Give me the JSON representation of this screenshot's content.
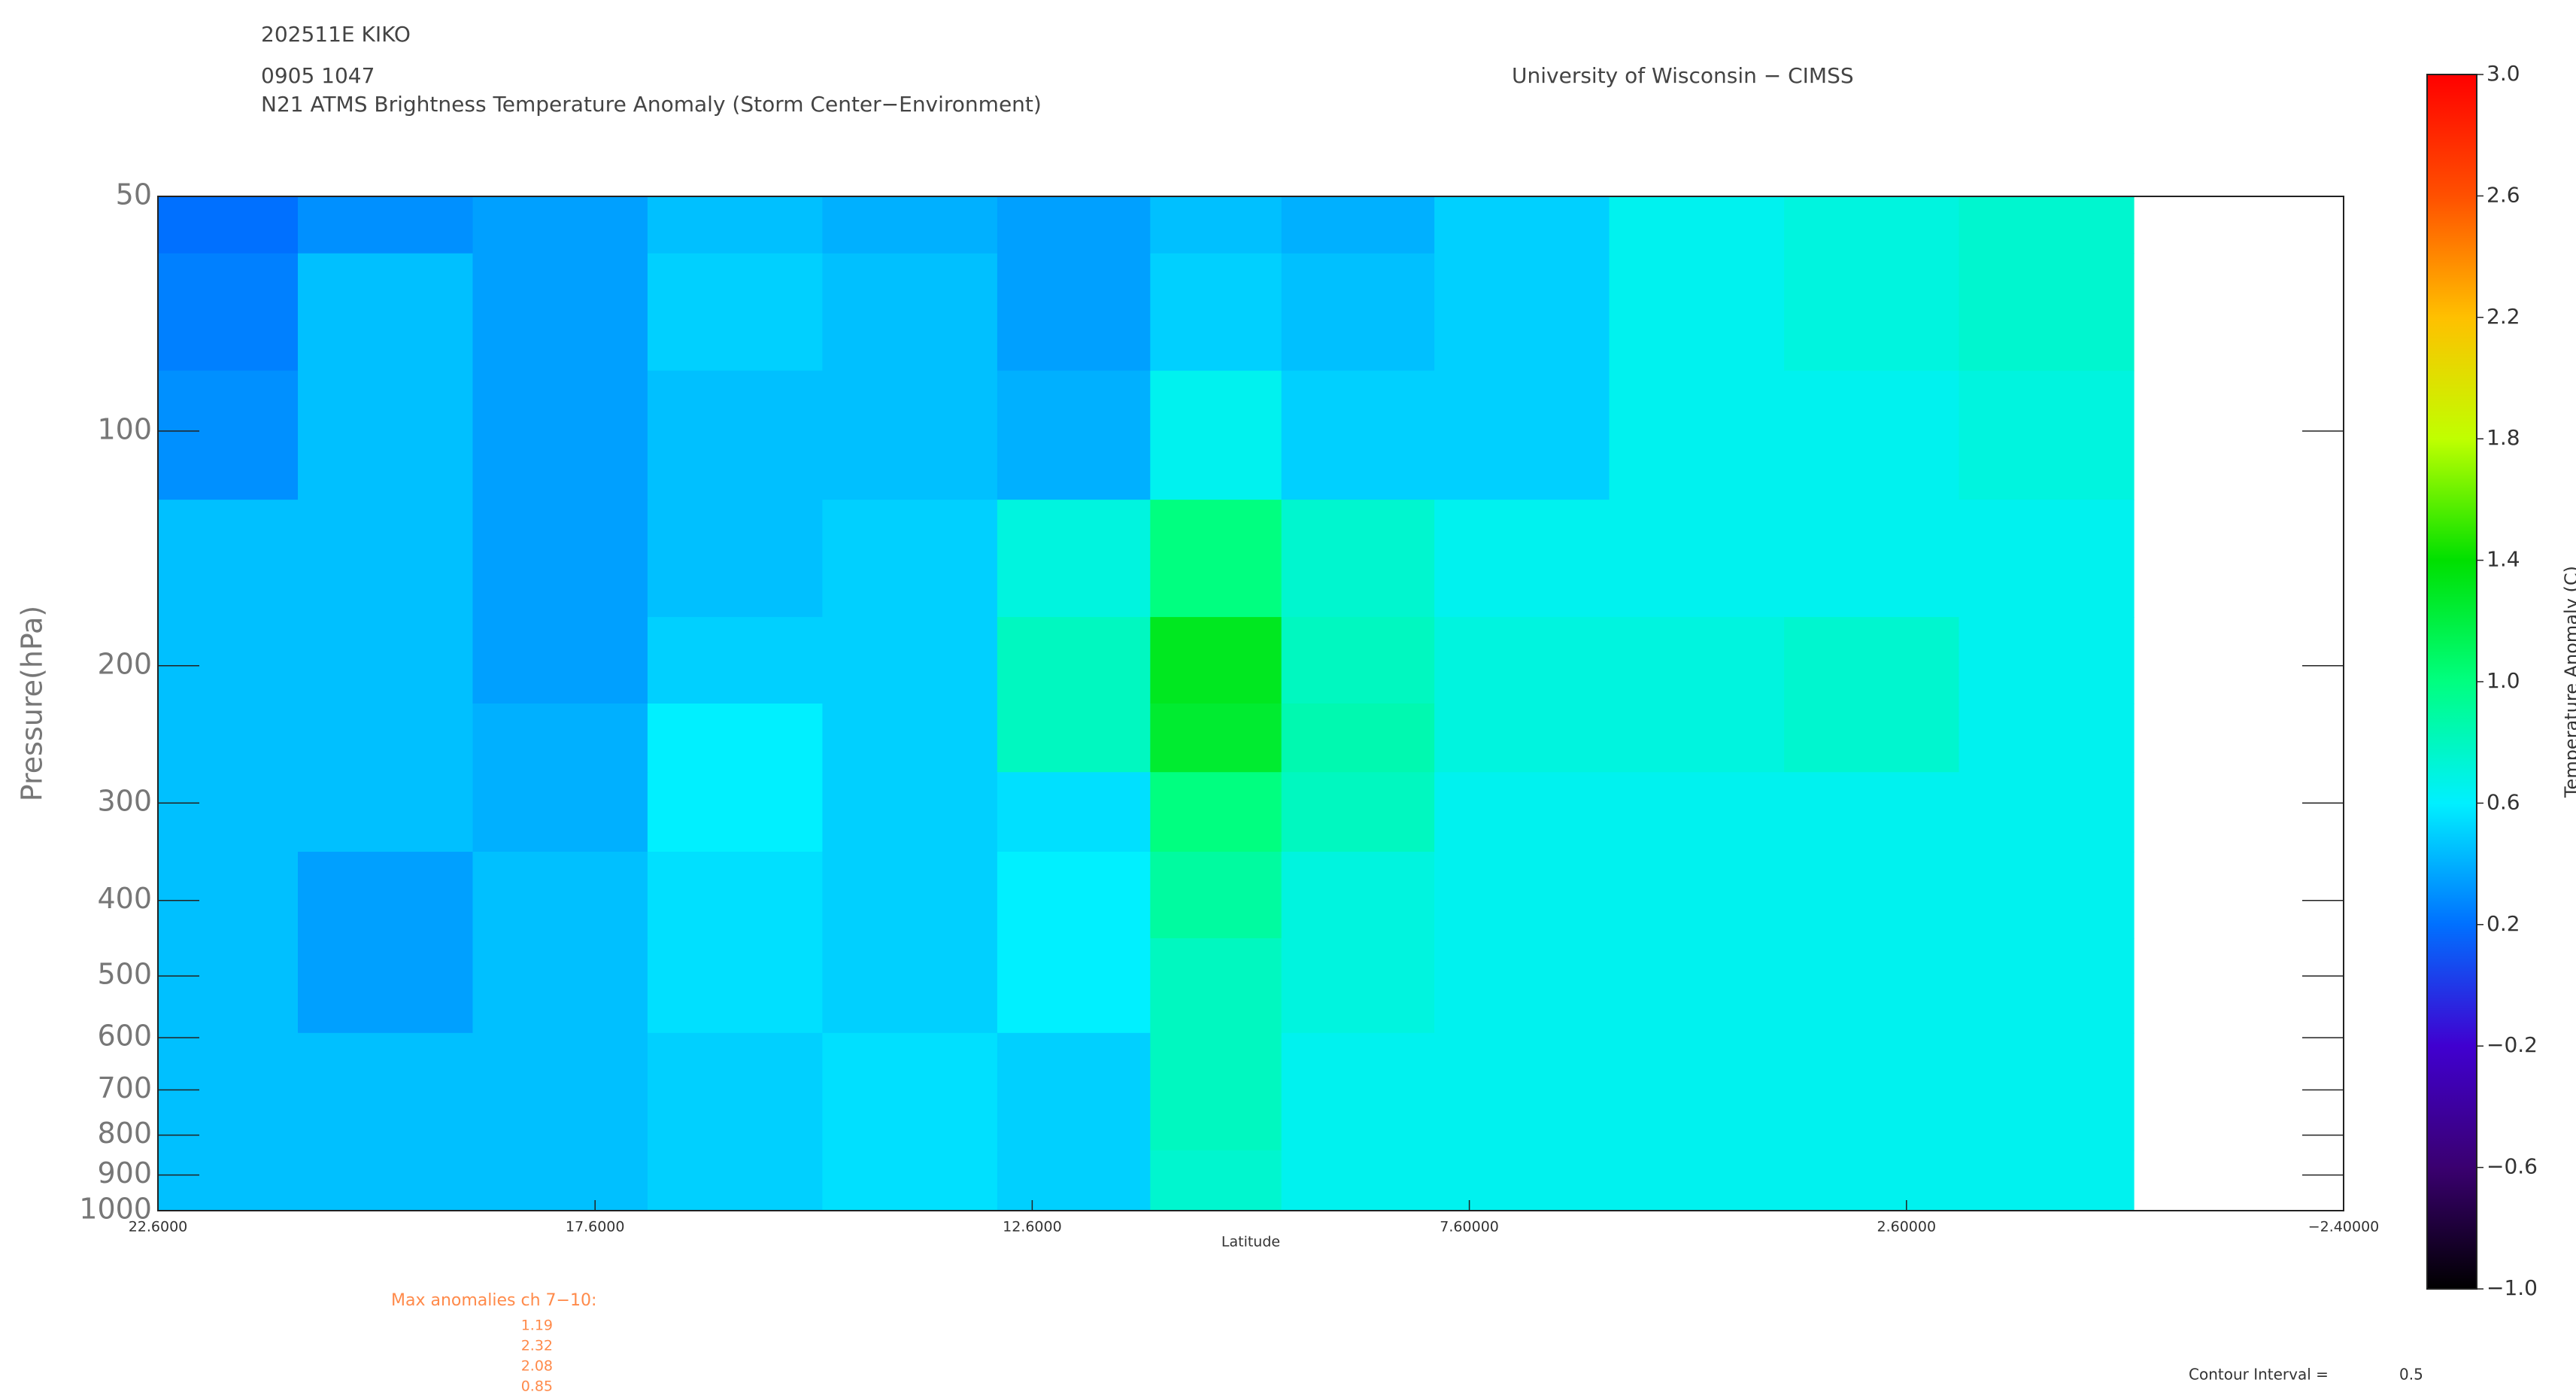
{
  "chart_data": {
    "type": "contour",
    "header": [
      "202511E KIKO",
      "0905 1047",
      "N21 ATMS Brightness Temperature Anomaly (Storm Center−Environment)"
    ],
    "credit": "University of Wisconsin − CIMSS",
    "xlabel": "Latitude",
    "ylabel": "Pressure(hPa)",
    "xlim": [
      22.6,
      -2.4
    ],
    "xticks": [
      {
        "value": 22.6,
        "label": "22.6000"
      },
      {
        "value": 17.6,
        "label": "17.6000"
      },
      {
        "value": 12.6,
        "label": "12.6000"
      },
      {
        "value": 7.6,
        "label": "7.60000"
      },
      {
        "value": 2.6,
        "label": "2.60000"
      },
      {
        "value": -2.4,
        "label": "−2.40000"
      }
    ],
    "ylim": [
      1000,
      50
    ],
    "ylog": true,
    "yticks": [
      50,
      100,
      200,
      300,
      400,
      500,
      600,
      700,
      800,
      900,
      1000
    ],
    "x": [
      22,
      20,
      18,
      16,
      14,
      12,
      10.5,
      9,
      7,
      5,
      3,
      1
    ],
    "y": [
      50,
      70,
      100,
      150,
      200,
      250,
      300,
      400,
      500,
      700,
      1000
    ],
    "z": [
      [
        0.2,
        0.3,
        0.35,
        0.45,
        0.4,
        0.35,
        0.45,
        0.4,
        0.5,
        0.65,
        0.7,
        0.75
      ],
      [
        0.25,
        0.45,
        0.35,
        0.5,
        0.45,
        0.35,
        0.5,
        0.45,
        0.5,
        0.65,
        0.7,
        0.75
      ],
      [
        0.3,
        0.45,
        0.35,
        0.45,
        0.45,
        0.4,
        0.65,
        0.5,
        0.5,
        0.65,
        0.65,
        0.7
      ],
      [
        0.45,
        0.45,
        0.35,
        0.45,
        0.5,
        0.7,
        1.0,
        0.75,
        0.65,
        0.65,
        0.65,
        0.65
      ],
      [
        0.45,
        0.45,
        0.35,
        0.5,
        0.5,
        0.8,
        1.3,
        0.8,
        0.7,
        0.7,
        0.75,
        0.65
      ],
      [
        0.45,
        0.45,
        0.4,
        0.6,
        0.5,
        0.8,
        1.25,
        0.85,
        0.7,
        0.7,
        0.75,
        0.65
      ],
      [
        0.45,
        0.45,
        0.4,
        0.6,
        0.5,
        0.55,
        1.0,
        0.8,
        0.65,
        0.65,
        0.65,
        0.65
      ],
      [
        0.45,
        0.35,
        0.45,
        0.55,
        0.5,
        0.6,
        0.9,
        0.7,
        0.65,
        0.65,
        0.65,
        0.65
      ],
      [
        0.45,
        0.35,
        0.45,
        0.55,
        0.5,
        0.6,
        0.8,
        0.7,
        0.65,
        0.65,
        0.65,
        0.65
      ],
      [
        0.45,
        0.45,
        0.45,
        0.5,
        0.55,
        0.5,
        0.8,
        0.65,
        0.65,
        0.65,
        0.65,
        0.65
      ],
      [
        0.45,
        0.45,
        0.45,
        0.5,
        0.55,
        0.5,
        0.75,
        0.65,
        0.65,
        0.65,
        0.65,
        0.65
      ]
    ],
    "zlim": [
      -1,
      3
    ],
    "zticks": [
      {
        "value": 3,
        "label": "3.0"
      },
      {
        "value": 2.6,
        "label": "2.6"
      },
      {
        "value": 2.2,
        "label": "2.2"
      },
      {
        "value": 1.8,
        "label": "1.8"
      },
      {
        "value": 1.4,
        "label": "1.4"
      },
      {
        "value": 1,
        "label": "1.0"
      },
      {
        "value": 0.6,
        "label": "0.6"
      },
      {
        "value": 0.2,
        "label": "0.2"
      },
      {
        "value": -0.2,
        "label": "−0.2"
      },
      {
        "value": -0.6,
        "label": "−0.6"
      },
      {
        "value": -1,
        "label": "−1.0"
      }
    ],
    "zlabel": "Temperature Anomaly (C)",
    "colormap": [
      "#000000",
      "#3a0070",
      "#4000d0",
      "#0070ff",
      "#00f0ff",
      "#00ff80",
      "#00e000",
      "#c0ff00",
      "#ffc000",
      "#ff5000",
      "#ff0000"
    ],
    "max_anomalies_title": "Max anomalies ch 7−10:",
    "max_anomalies": [
      1.19,
      2.32,
      2.08,
      0.85
    ],
    "contour_interval_label": "Contour Interval =",
    "contour_interval": 0.5
  }
}
